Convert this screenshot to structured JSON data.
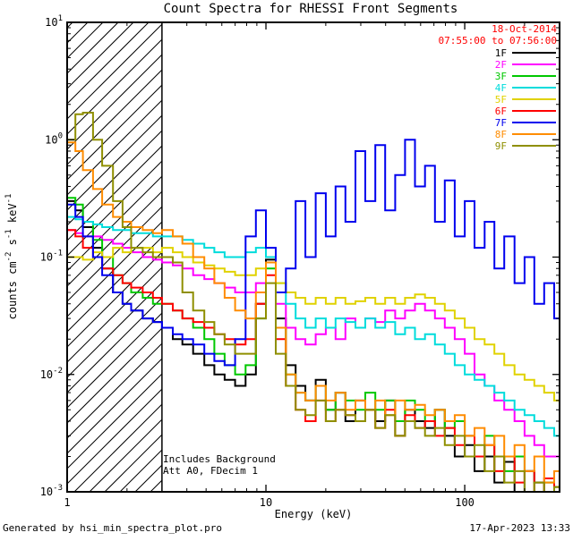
{
  "chart": {
    "title": "Count Spectra for RHESSI Front Segments",
    "date": "18-Oct-2014",
    "time_range": "07:55:00 to 07:56:00",
    "annotations": [
      "Includes Background",
      "Att A0, FDecim 1"
    ],
    "footer_left": "Generated by hsi_min_spectra_plot.pro",
    "footer_right": "17-Apr-2023 13:33",
    "date_color": "#ff0000"
  },
  "chart_data": {
    "type": "line",
    "mode": "log-log-steps",
    "title": "Count Spectra for RHESSI Front Segments",
    "xlabel": "Energy (keV)",
    "ylabel": "counts cm-2 s-1 keV-1",
    "ylabel_parts": [
      [
        "counts cm",
        false
      ],
      [
        "-2",
        true
      ],
      [
        " s",
        false
      ],
      [
        "-1",
        true
      ],
      [
        " keV",
        false
      ],
      [
        "-1",
        true
      ]
    ],
    "xlim": [
      1,
      300
    ],
    "ylim": [
      0.001,
      10
    ],
    "x_ticks": [
      1,
      10,
      100
    ],
    "y_tick_exponents": [
      -3,
      -2,
      -1,
      0,
      1
    ],
    "grid": false,
    "legend_position": "top-right",
    "hatch_region_kev": [
      1,
      3
    ],
    "energies_kev": [
      1.0,
      1.1,
      1.2,
      1.35,
      1.5,
      1.7,
      1.9,
      2.1,
      2.4,
      2.7,
      3.0,
      3.4,
      3.8,
      4.3,
      4.9,
      5.5,
      6.2,
      7.0,
      7.9,
      8.9,
      10.0,
      11.2,
      12.6,
      14.1,
      15.8,
      17.8,
      20.0,
      22.4,
      25.1,
      28.2,
      31.6,
      35.5,
      39.8,
      44.7,
      50.1,
      56.2,
      63.1,
      70.8,
      79.4,
      89.1,
      100,
      112,
      126,
      141,
      158,
      178,
      200,
      224,
      251,
      282
    ],
    "series": [
      {
        "name": "1F",
        "color": "#000000",
        "values": [
          0.3,
          0.25,
          0.18,
          0.12,
          0.08,
          0.05,
          0.04,
          0.035,
          0.03,
          0.028,
          0.025,
          0.02,
          0.018,
          0.015,
          0.012,
          0.01,
          0.009,
          0.008,
          0.01,
          0.04,
          0.095,
          0.03,
          0.012,
          0.008,
          0.006,
          0.009,
          0.005,
          0.007,
          0.004,
          0.006,
          0.005,
          0.004,
          0.006,
          0.003,
          0.005,
          0.004,
          0.0035,
          0.005,
          0.003,
          0.002,
          0.0025,
          0.0015,
          0.002,
          0.0012,
          0.0018,
          0.001,
          0.0015,
          0.0012,
          0.001,
          0.0011
        ]
      },
      {
        "name": "2F",
        "color": "#ff00ff",
        "values": [
          0.17,
          0.16,
          0.15,
          0.15,
          0.14,
          0.13,
          0.12,
          0.11,
          0.1,
          0.095,
          0.09,
          0.085,
          0.08,
          0.07,
          0.065,
          0.06,
          0.055,
          0.05,
          0.05,
          0.06,
          0.09,
          0.04,
          0.025,
          0.02,
          0.018,
          0.022,
          0.025,
          0.02,
          0.03,
          0.025,
          0.03,
          0.028,
          0.035,
          0.03,
          0.035,
          0.04,
          0.035,
          0.03,
          0.025,
          0.02,
          0.015,
          0.01,
          0.008,
          0.006,
          0.005,
          0.004,
          0.003,
          0.0025,
          0.002,
          0.002
        ]
      },
      {
        "name": "3F",
        "color": "#00c800",
        "values": [
          0.32,
          0.28,
          0.2,
          0.14,
          0.1,
          0.07,
          0.06,
          0.05,
          0.045,
          0.04,
          0.04,
          0.035,
          0.03,
          0.025,
          0.02,
          0.015,
          0.012,
          0.01,
          0.012,
          0.03,
          0.08,
          0.025,
          0.01,
          0.007,
          0.006,
          0.008,
          0.005,
          0.007,
          0.006,
          0.005,
          0.007,
          0.005,
          0.006,
          0.004,
          0.006,
          0.005,
          0.004,
          0.005,
          0.0035,
          0.004,
          0.003,
          0.002,
          0.003,
          0.002,
          0.0015,
          0.002,
          0.0015,
          0.001,
          0.0012,
          0.001
        ]
      },
      {
        "name": "4F",
        "color": "#00dcdc",
        "values": [
          0.22,
          0.21,
          0.2,
          0.19,
          0.18,
          0.17,
          0.17,
          0.16,
          0.16,
          0.15,
          0.15,
          0.15,
          0.14,
          0.13,
          0.12,
          0.11,
          0.1,
          0.1,
          0.11,
          0.12,
          0.1,
          0.06,
          0.04,
          0.03,
          0.025,
          0.03,
          0.025,
          0.03,
          0.028,
          0.025,
          0.03,
          0.025,
          0.028,
          0.022,
          0.025,
          0.02,
          0.022,
          0.018,
          0.015,
          0.012,
          0.01,
          0.009,
          0.008,
          0.007,
          0.006,
          0.005,
          0.0045,
          0.004,
          0.0035,
          0.003
        ]
      },
      {
        "name": "5F",
        "color": "#e0d200",
        "values": [
          0.1,
          0.1,
          0.095,
          0.11,
          0.1,
          0.12,
          0.11,
          0.12,
          0.12,
          0.11,
          0.12,
          0.11,
          0.1,
          0.09,
          0.085,
          0.08,
          0.075,
          0.07,
          0.07,
          0.08,
          0.09,
          0.06,
          0.05,
          0.045,
          0.04,
          0.045,
          0.04,
          0.045,
          0.04,
          0.042,
          0.045,
          0.04,
          0.045,
          0.04,
          0.045,
          0.048,
          0.045,
          0.04,
          0.035,
          0.03,
          0.025,
          0.02,
          0.018,
          0.015,
          0.012,
          0.01,
          0.009,
          0.008,
          0.007,
          0.006
        ]
      },
      {
        "name": "6F",
        "color": "#ff0000",
        "values": [
          0.17,
          0.15,
          0.12,
          0.1,
          0.08,
          0.07,
          0.06,
          0.055,
          0.05,
          0.045,
          0.04,
          0.035,
          0.03,
          0.028,
          0.025,
          0.022,
          0.02,
          0.018,
          0.02,
          0.04,
          0.07,
          0.02,
          0.008,
          0.005,
          0.004,
          0.006,
          0.004,
          0.005,
          0.0045,
          0.004,
          0.005,
          0.0035,
          0.005,
          0.003,
          0.0045,
          0.0035,
          0.004,
          0.003,
          0.0035,
          0.0025,
          0.003,
          0.002,
          0.0025,
          0.0015,
          0.002,
          0.0012,
          0.0015,
          0.001,
          0.0013,
          0.001
        ]
      },
      {
        "name": "7F",
        "color": "#0000ee",
        "values": [
          0.28,
          0.22,
          0.15,
          0.1,
          0.07,
          0.05,
          0.04,
          0.035,
          0.03,
          0.028,
          0.025,
          0.022,
          0.02,
          0.018,
          0.015,
          0.013,
          0.012,
          0.02,
          0.15,
          0.25,
          0.12,
          0.05,
          0.08,
          0.3,
          0.1,
          0.35,
          0.15,
          0.4,
          0.2,
          0.8,
          0.3,
          0.9,
          0.25,
          0.5,
          1.0,
          0.4,
          0.6,
          0.2,
          0.45,
          0.15,
          0.3,
          0.12,
          0.2,
          0.08,
          0.15,
          0.06,
          0.1,
          0.04,
          0.06,
          0.03
        ]
      },
      {
        "name": "8F",
        "color": "#ff8c00",
        "values": [
          0.95,
          0.8,
          0.55,
          0.38,
          0.28,
          0.22,
          0.2,
          0.18,
          0.17,
          0.16,
          0.17,
          0.15,
          0.13,
          0.1,
          0.08,
          0.06,
          0.045,
          0.035,
          0.03,
          0.05,
          0.09,
          0.025,
          0.01,
          0.007,
          0.006,
          0.008,
          0.006,
          0.007,
          0.005,
          0.006,
          0.005,
          0.006,
          0.0045,
          0.006,
          0.005,
          0.0055,
          0.0045,
          0.005,
          0.004,
          0.0045,
          0.003,
          0.0035,
          0.0025,
          0.003,
          0.002,
          0.0025,
          0.0015,
          0.002,
          0.0012,
          0.0015
        ]
      },
      {
        "name": "9F",
        "color": "#8f8f00",
        "values": [
          1.0,
          1.65,
          1.7,
          1.0,
          0.6,
          0.3,
          0.18,
          0.12,
          0.11,
          0.1,
          0.1,
          0.09,
          0.05,
          0.035,
          0.028,
          0.022,
          0.018,
          0.015,
          0.015,
          0.03,
          0.06,
          0.015,
          0.008,
          0.005,
          0.0045,
          0.006,
          0.004,
          0.005,
          0.0045,
          0.004,
          0.005,
          0.0035,
          0.0045,
          0.003,
          0.004,
          0.0035,
          0.003,
          0.0035,
          0.0025,
          0.003,
          0.002,
          0.0025,
          0.0015,
          0.002,
          0.0012,
          0.0015,
          0.001,
          0.0012,
          0.001,
          0.0011
        ]
      }
    ]
  }
}
